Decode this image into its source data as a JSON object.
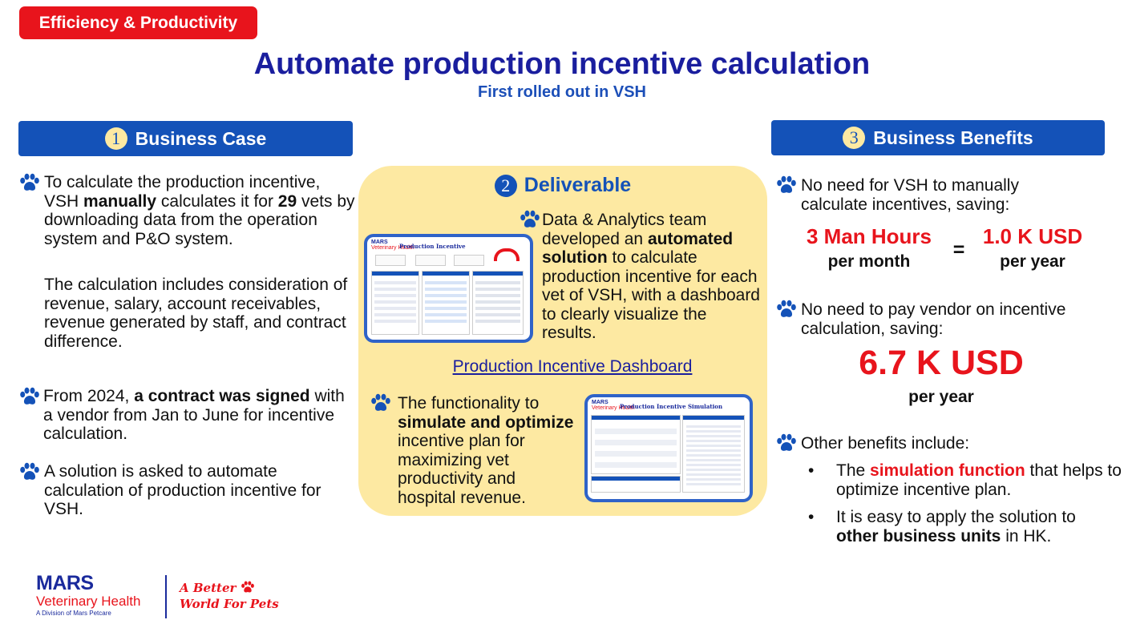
{
  "tag": "Efficiency & Productivity",
  "title": "Automate production incentive calculation",
  "subtitle": "First rolled out in VSH",
  "section1": {
    "number": "1",
    "title": "Business Case",
    "bullet1": {
      "t1": "To calculate the production incentive, VSH ",
      "b1": "manually",
      "t2": " calculates it for ",
      "b2": "29",
      "t3": " vets by downloading data from the operation system and P&O system."
    },
    "bullet1_sub": "The calculation includes consideration of revenue, salary, account receivables, revenue generated by staff, and contract difference.",
    "bullet2": {
      "t1": "From 2024, ",
      "b1": "a contract was signed",
      "t2": " with a vendor from Jan to June for incentive calculation."
    },
    "bullet3": "A solution is asked to automate calculation of production incentive for VSH."
  },
  "section2": {
    "number": "2",
    "title": "Deliverable",
    "bullet1": {
      "t1": "Data & Analytics team developed an ",
      "b1": "automated solution",
      "t2": " to calculate production incentive for each vet of VSH, with a dashboard to clearly visualize the results."
    },
    "link": "Production Incentive Dashboard",
    "bullet2": {
      "t1": "The functionality to ",
      "b1": "simulate and optimize",
      "t2": " incentive plan for maximizing vet productivity and hospital revenue."
    },
    "thumb1": {
      "brand": "MARS",
      "brand_sub": "Veterinary Health",
      "title": "Production Incentive"
    },
    "thumb2": {
      "brand": "MARS",
      "brand_sub": "Veterinary Health",
      "title": "Production Incentive Simulation"
    }
  },
  "section3": {
    "number": "3",
    "title": "Business Benefits",
    "bullet1": "No need for VSH to manually calculate incentives, saving:",
    "metric1_value": "3 Man Hours",
    "metric1_unit": "per month",
    "equals": "=",
    "metric2_value": "1.0 K USD",
    "metric2_unit": "per year",
    "bullet2": "No need to pay vendor on incentive calculation, saving:",
    "metric3_value": "6.7 K USD",
    "metric3_unit": "per year",
    "bullet3": "Other benefits include:",
    "sub1": {
      "t1": "The ",
      "r1": "simulation function",
      "t2": " that helps to optimize incentive plan."
    },
    "sub2": {
      "t1": "It is easy to apply the solution to ",
      "b1": "other business units",
      "t2": " in HK."
    }
  },
  "footer": {
    "brand": "MARS",
    "brand_sub": "Veterinary Health",
    "division": "A Division of Mars Petcare",
    "tagline1": "A Better",
    "tagline2": "World For Pets"
  },
  "colors": {
    "red": "#e8141c",
    "blue": "#1452b8",
    "navy": "#1a1e9e",
    "cream": "#fde9a2"
  },
  "icons": [
    "paw-icon"
  ]
}
